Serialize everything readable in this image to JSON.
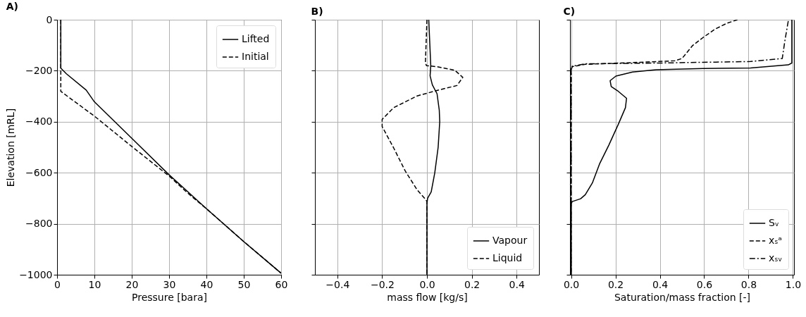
{
  "chart_data": [
    {
      "type": "line",
      "title": "A)",
      "xlabel": "Pressure [bara]",
      "ylabel": "Elevation [mRL]",
      "xlim": [
        0,
        60
      ],
      "xticks": [
        0,
        10,
        20,
        30,
        40,
        50,
        60
      ],
      "ylim": [
        -1000,
        0
      ],
      "yticks": [
        {
          "value": -1000,
          "label": "−1000"
        },
        {
          "value": -800,
          "label": "−800"
        },
        {
          "value": -600,
          "label": "−600"
        },
        {
          "value": -400,
          "label": "−400"
        },
        {
          "value": -200,
          "label": "−200"
        },
        0
      ],
      "grid": true,
      "legend": "top right",
      "series": [
        {
          "name": "Lifted",
          "color": "#000000",
          "line_style": "solid",
          "x": [
            1,
            1,
            1,
            2.5,
            7.8,
            10,
            20,
            30,
            40,
            50,
            60
          ],
          "values": [
            0,
            -100,
            -190,
            -212,
            -276,
            -322,
            -465,
            -608,
            -741,
            -870,
            -994
          ]
        },
        {
          "name": "Initial",
          "color": "#000000",
          "line_style": "dashed",
          "x": [
            1,
            1,
            1,
            10,
            20,
            30,
            35,
            40,
            50,
            60
          ],
          "values": [
            0,
            -150,
            -281,
            -378,
            -497,
            -613,
            -680,
            -741,
            -870,
            -994
          ]
        }
      ]
    },
    {
      "type": "line",
      "title": "B)",
      "xlabel": "mass flow [kg/s]",
      "xlim": [
        -0.5,
        0.5
      ],
      "xticks": [
        {
          "value": -0.4,
          "label": "−0.4"
        },
        {
          "value": -0.2,
          "label": "−0.2"
        },
        {
          "value": 0,
          "label": "0.0"
        },
        {
          "value": 0.2,
          "label": "0.2"
        },
        {
          "value": 0.4,
          "label": "0.4"
        }
      ],
      "ylim": [
        -1000,
        0
      ],
      "yticks": [
        {
          "value": -1000,
          "label": null
        },
        {
          "value": -800,
          "label": null
        },
        {
          "value": -600,
          "label": null
        },
        {
          "value": -400,
          "label": null
        },
        {
          "value": -200,
          "label": null
        },
        {
          "value": 0,
          "label": null
        }
      ],
      "tick_labels": "x",
      "grid": true,
      "legend": "bottom right",
      "series": [
        {
          "name": "Vapour",
          "color": "#000000",
          "line_style": "solid",
          "x": [
            0.008,
            0.017,
            0.014,
            0.024,
            0.045,
            0.055,
            0.057,
            0.05,
            0.035,
            0.019,
            0.003,
            0,
            0
          ],
          "values": [
            0,
            -180,
            -220,
            -255,
            -290,
            -355,
            -400,
            -500,
            -600,
            -675,
            -700,
            -720,
            -1000
          ]
        },
        {
          "name": "Liquid",
          "color": "#000000",
          "line_style": "dashed",
          "x": [
            0,
            -0.007,
            -0.002,
            0.05,
            0.124,
            0.16,
            0.134,
            0.05,
            -0.044,
            -0.149,
            -0.2,
            -0.2,
            -0.149,
            -0.097,
            -0.044,
            -0.007,
            0,
            0
          ],
          "values": [
            0,
            -170,
            -180,
            -185,
            -198,
            -226,
            -258,
            -276,
            -299,
            -345,
            -391,
            -419,
            -502,
            -593,
            -667,
            -704,
            -713,
            -1000
          ]
        }
      ]
    },
    {
      "type": "line",
      "title": "C)",
      "xlabel": "Saturation/mass fraction [-]",
      "xlim": [
        -0.005,
        1.005
      ],
      "xticks": [
        {
          "value": 0,
          "label": "0.0"
        },
        {
          "value": 0.2,
          "label": "0.2"
        },
        {
          "value": 0.4,
          "label": "0.4"
        },
        {
          "value": 0.6,
          "label": "0.6"
        },
        {
          "value": 0.8,
          "label": "0.8"
        },
        {
          "value": 1,
          "label": "1.0"
        }
      ],
      "ylim": [
        -1000,
        0
      ],
      "yticks": [
        {
          "value": -1000,
          "label": null
        },
        {
          "value": -800,
          "label": null
        },
        {
          "value": -600,
          "label": null
        },
        {
          "value": -400,
          "label": null
        },
        {
          "value": -200,
          "label": null
        },
        {
          "value": 0,
          "label": null
        }
      ],
      "tick_labels": "x",
      "grid": true,
      "legend": "bottom right",
      "series": [
        {
          "name": "Sᵥ",
          "color": "#000000",
          "line_style": "solid",
          "x": [
            0.995,
            0.995,
            0.979,
            0.809,
            0.596,
            0.383,
            0.277,
            0.202,
            0.176,
            0.181,
            0.213,
            0.25,
            0.245,
            0.213,
            0.17,
            0.128,
            0.096,
            0.064,
            0.043,
            0.005,
            0,
            0
          ],
          "values": [
            0,
            -170,
            -177,
            -189,
            -191,
            -196,
            -205,
            -221,
            -239,
            -262,
            -281,
            -308,
            -345,
            -410,
            -492,
            -566,
            -640,
            -686,
            -702,
            -713,
            -722,
            -1000
          ]
        },
        {
          "name": "xₛᵃ",
          "color": "#000000",
          "line_style": "dashed",
          "x": [
            0.75,
            0.702,
            0.649,
            0.596,
            0.548,
            0.5,
            0.468,
            0.277,
            0.064,
            0.005,
            0,
            0
          ],
          "values": [
            0,
            -14,
            -37,
            -69,
            -101,
            -152,
            -161,
            -168,
            -175,
            -184,
            -198,
            -1000
          ]
        },
        {
          "name": "xₛᵥ",
          "color": "#000000",
          "line_style": "dashdot",
          "x": [
            0.979,
            0.963,
            0.952,
            0.809,
            0.383,
            0.064,
            0.005,
            0,
            0
          ],
          "values": [
            -5,
            -87,
            -152,
            -164,
            -170,
            -173,
            -182,
            -198,
            -1000
          ]
        }
      ]
    }
  ]
}
